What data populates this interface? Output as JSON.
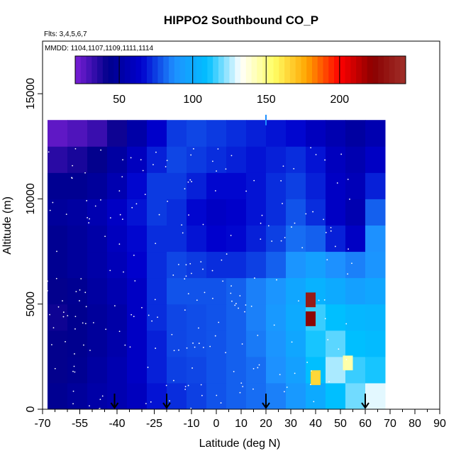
{
  "chart_data": {
    "type": "heatmap",
    "title": "HIPPO2 Southbound CO_P",
    "subtitle_flights": "Flts: 3,4,5,6,7",
    "subtitle_dates": "MMDD: 1104,1107,1109,1111,1114",
    "xlabel": "Latitude (deg N)",
    "ylabel": "Altitude (m)",
    "xlim": [
      -70,
      90
    ],
    "ylim": [
      0,
      17500
    ],
    "x_ticks": [
      -70,
      -55,
      -40,
      -25,
      -10,
      0,
      10,
      20,
      30,
      40,
      50,
      60,
      70,
      80,
      90
    ],
    "y_ticks": [
      0,
      5000,
      10000,
      15000
    ],
    "colorbar": {
      "range": [
        20,
        245
      ],
      "ticks": [
        50,
        100,
        150,
        200
      ],
      "colors": [
        "#7a1fd6",
        "#00008b",
        "#0000cd",
        "#1e90ff",
        "#00bfff",
        "#ffffff",
        "#ffff66",
        "#ffa500",
        "#ff0000",
        "#8b0000",
        "#a0302a"
      ]
    },
    "grid_x": [
      -68,
      -60,
      -52,
      -44,
      -36,
      -28,
      -20,
      -12,
      -4,
      4,
      12,
      20,
      28,
      36,
      44,
      52,
      60
    ],
    "grid_y": [
      0,
      1250,
      2500,
      3750,
      5000,
      6250,
      7500,
      8750,
      10000,
      11250,
      12500
    ],
    "grid_values": [
      [
        45,
        48,
        52,
        55,
        60,
        68,
        72,
        75,
        78,
        80,
        82,
        85,
        92,
        100,
        110,
        120,
        130
      ],
      [
        42,
        45,
        50,
        55,
        62,
        70,
        75,
        76,
        78,
        80,
        82,
        88,
        95,
        110,
        125,
        115,
        112
      ],
      [
        42,
        44,
        48,
        53,
        62,
        70,
        76,
        77,
        78,
        80,
        84,
        90,
        98,
        112,
        118,
        110,
        108
      ],
      [
        40,
        44,
        48,
        52,
        62,
        72,
        76,
        77,
        78,
        80,
        85,
        92,
        100,
        115,
        110,
        106,
        105
      ],
      [
        42,
        45,
        50,
        55,
        62,
        72,
        78,
        78,
        78,
        80,
        85,
        90,
        98,
        104,
        100,
        95,
        98
      ],
      [
        45,
        48,
        52,
        58,
        65,
        72,
        76,
        74,
        72,
        72,
        75,
        80,
        90,
        95,
        88,
        85,
        90
      ],
      [
        45,
        48,
        52,
        60,
        66,
        72,
        72,
        68,
        65,
        66,
        70,
        75,
        82,
        80,
        70,
        62,
        88
      ],
      [
        48,
        50,
        55,
        62,
        68,
        74,
        72,
        66,
        62,
        64,
        68,
        72,
        78,
        72,
        62,
        55,
        80
      ],
      [
        45,
        45,
        48,
        55,
        66,
        74,
        74,
        70,
        66,
        66,
        68,
        72,
        75,
        70,
        62,
        58,
        70
      ],
      [
        35,
        38,
        42,
        50,
        60,
        70,
        76,
        74,
        72,
        70,
        68,
        70,
        72,
        68,
        60,
        55,
        62
      ],
      [
        25,
        28,
        32,
        40,
        52,
        64,
        74,
        76,
        74,
        72,
        70,
        68,
        66,
        60,
        55,
        50,
        55
      ]
    ],
    "hotspots": [
      {
        "lat": 38,
        "alt": 5200,
        "value": 235
      },
      {
        "lat": 38,
        "alt": 4300,
        "value": 225
      },
      {
        "lat": 40,
        "alt": 1500,
        "value": 165
      },
      {
        "lat": 53,
        "alt": 2200,
        "value": 145
      }
    ],
    "flight_track_markers": [
      -41,
      -20,
      20,
      60
    ],
    "top_spike_lat": 20,
    "top_spike_alt_range": [
      13500,
      14000
    ]
  }
}
